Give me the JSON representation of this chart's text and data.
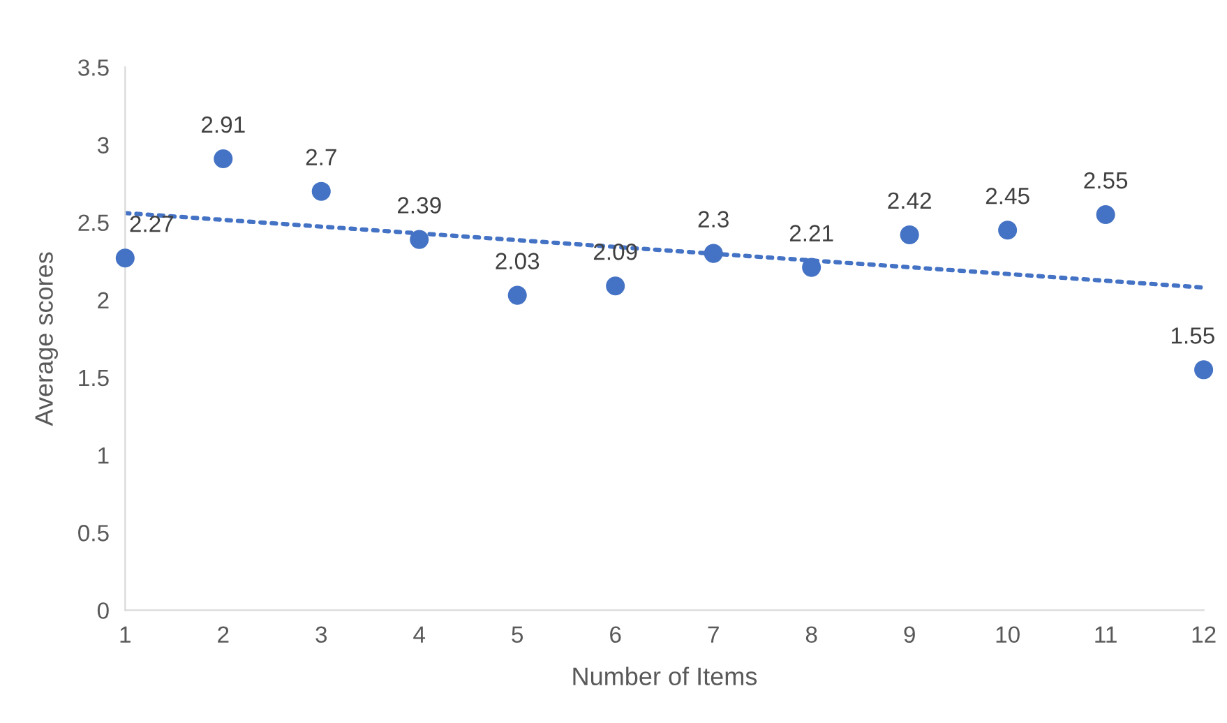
{
  "chart_data": {
    "type": "scatter",
    "xlabel": "Number of Items",
    "ylabel": "Average scores",
    "xlim": [
      1,
      12
    ],
    "xticks": [
      1,
      2,
      3,
      4,
      5,
      6,
      7,
      8,
      9,
      10,
      11,
      12
    ],
    "ylim": [
      0,
      3.5
    ],
    "yticks": [
      0,
      0.5,
      1,
      1.5,
      2,
      2.5,
      3,
      3.5
    ],
    "grid": false,
    "legend": false,
    "series": [
      {
        "color": "#4472c4",
        "marker": "circle",
        "x": [
          1,
          2,
          3,
          4,
          5,
          6,
          7,
          8,
          9,
          10,
          11,
          12
        ],
        "values": [
          2.27,
          2.91,
          2.7,
          2.39,
          2.03,
          2.09,
          2.3,
          2.21,
          2.42,
          2.45,
          2.55,
          1.55
        ],
        "value_labels": [
          "2.27",
          "2.91",
          "2.7",
          "2.39",
          "2.03",
          "2.09",
          "2.3",
          "2.21",
          "2.42",
          "2.45",
          "2.55",
          "1.55"
        ]
      },
      {
        "type": "line",
        "color": "#4472c4",
        "line_style": "dotted",
        "x": [
          1,
          12
        ],
        "values": [
          2.56,
          2.08
        ]
      }
    ]
  }
}
